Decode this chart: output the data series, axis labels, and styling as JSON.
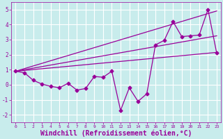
{
  "xlabel": "Windchill (Refroidissement éolien,°C)",
  "xlim": [
    -0.5,
    23.5
  ],
  "ylim": [
    -2.5,
    5.5
  ],
  "xticks": [
    0,
    1,
    2,
    3,
    4,
    5,
    6,
    7,
    8,
    9,
    10,
    11,
    12,
    13,
    14,
    15,
    16,
    17,
    18,
    19,
    20,
    21,
    22,
    23
  ],
  "yticks": [
    -2,
    -1,
    0,
    1,
    2,
    3,
    4,
    5
  ],
  "bg_color": "#c8ecec",
  "grid_color": "#b0d8d8",
  "line_color": "#990099",
  "data_x": [
    0,
    1,
    2,
    3,
    4,
    5,
    6,
    7,
    8,
    9,
    10,
    11,
    12,
    13,
    14,
    15,
    16,
    17,
    18,
    19,
    20,
    21,
    22,
    23
  ],
  "data_y": [
    0.9,
    0.8,
    0.3,
    0.05,
    -0.1,
    -0.2,
    0.1,
    -0.35,
    -0.25,
    0.55,
    0.5,
    0.9,
    -1.7,
    -0.2,
    -1.1,
    -0.6,
    2.65,
    2.95,
    4.2,
    3.2,
    3.25,
    3.3,
    5.0,
    2.1
  ],
  "trend1_x": [
    0,
    23
  ],
  "trend1_y": [
    0.9,
    4.9
  ],
  "trend2_x": [
    0,
    23
  ],
  "trend2_y": [
    0.9,
    3.25
  ],
  "trend3_x": [
    0,
    23
  ],
  "trend3_y": [
    0.9,
    2.15
  ],
  "marker": "D",
  "markersize": 2.5,
  "linewidth": 0.9,
  "xlabel_fontsize": 7
}
